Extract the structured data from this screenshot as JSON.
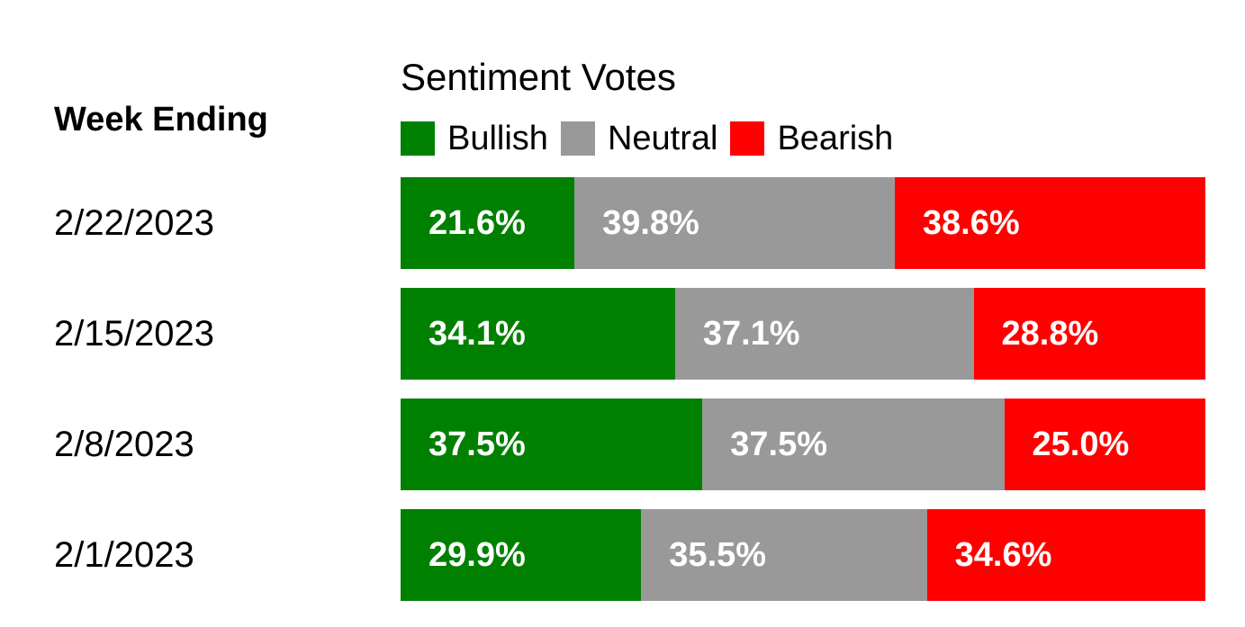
{
  "chart_data": {
    "type": "bar",
    "orientation": "horizontal",
    "stacked": true,
    "title": "Sentiment Votes",
    "row_header": "Week Ending",
    "categories": [
      "2/22/2023",
      "2/15/2023",
      "2/8/2023",
      "2/1/2023"
    ],
    "series": [
      {
        "name": "Bullish",
        "color": "#008000",
        "values": [
          21.6,
          34.1,
          37.5,
          29.9
        ]
      },
      {
        "name": "Neutral",
        "color": "#999999",
        "values": [
          39.8,
          37.1,
          37.5,
          35.5
        ]
      },
      {
        "name": "Bearish",
        "color": "#ff0000",
        "values": [
          38.6,
          28.8,
          25.0,
          34.6
        ]
      }
    ],
    "value_suffix": "%",
    "xlim": [
      0,
      100
    ],
    "legend_position": "top"
  }
}
